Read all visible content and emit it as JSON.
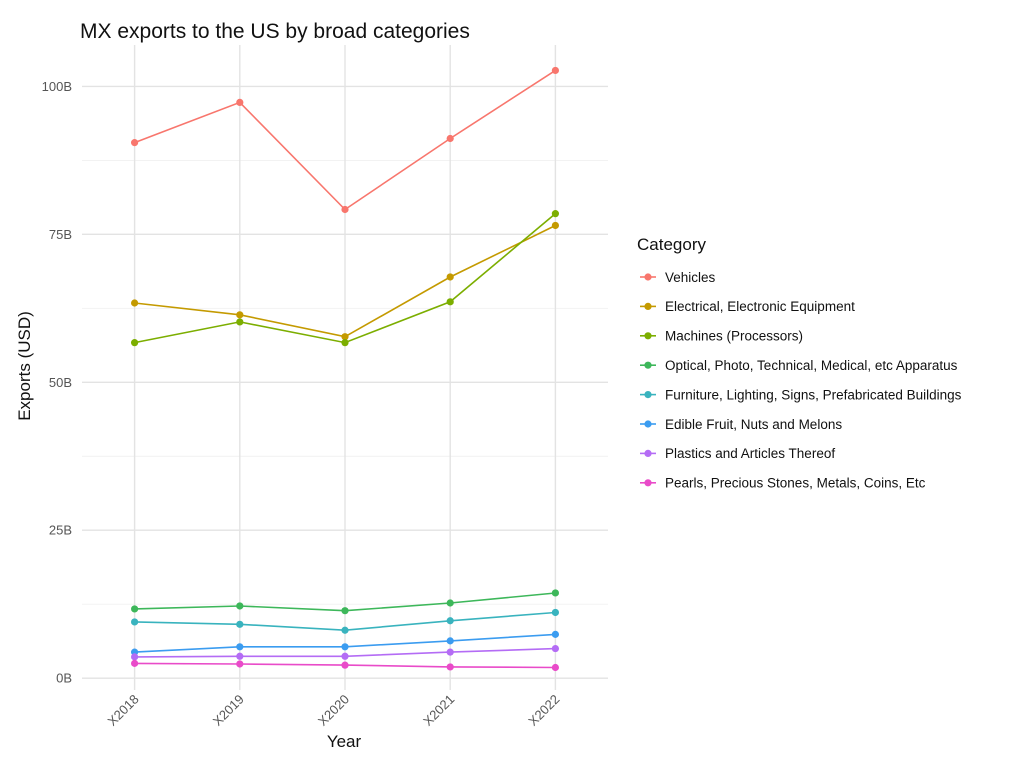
{
  "chart_data": {
    "type": "line",
    "title": "MX exports to the US by broad categories",
    "xlabel": "Year",
    "ylabel": "Exports (USD)",
    "categories": [
      "X2018",
      "X2019",
      "X2020",
      "X2021",
      "X2022"
    ],
    "ylim": [
      -2,
      107
    ],
    "yticks": [
      0,
      25,
      50,
      75,
      100
    ],
    "ytick_labels": [
      "0B",
      "25B",
      "50B",
      "75B",
      "100B"
    ],
    "grid": true,
    "legend_title": "Category",
    "legend_position": "right",
    "series": [
      {
        "name": "Vehicles",
        "color": "#F8766D",
        "values": [
          90.5,
          97.3,
          79.2,
          91.2,
          102.7
        ]
      },
      {
        "name": "Electrical, Electronic Equipment",
        "color": "#C49A00",
        "values": [
          63.4,
          61.4,
          57.7,
          67.8,
          76.5
        ]
      },
      {
        "name": "Machines (Processors)",
        "color": "#7CAE00",
        "values": [
          56.7,
          60.2,
          56.7,
          63.6,
          78.5
        ]
      },
      {
        "name": "Optical, Photo, Technical, Medical, etc Apparatus",
        "color": "#3DB75A",
        "values": [
          11.7,
          12.2,
          11.4,
          12.7,
          14.4
        ]
      },
      {
        "name": "Furniture, Lighting, Signs, Prefabricated Buildings",
        "color": "#39B3BE",
        "values": [
          9.5,
          9.1,
          8.1,
          9.7,
          11.1
        ]
      },
      {
        "name": "Edible Fruit, Nuts and Melons",
        "color": "#3B9CF0",
        "values": [
          4.4,
          5.3,
          5.3,
          6.3,
          7.4
        ]
      },
      {
        "name": "Plastics and Articles Thereof",
        "color": "#B46CF5",
        "values": [
          3.6,
          3.7,
          3.7,
          4.4,
          5.0
        ]
      },
      {
        "name": "Pearls, Precious Stones, Metals, Coins, Etc",
        "color": "#E94BC9",
        "values": [
          2.5,
          2.4,
          2.2,
          1.9,
          1.8
        ]
      }
    ]
  }
}
